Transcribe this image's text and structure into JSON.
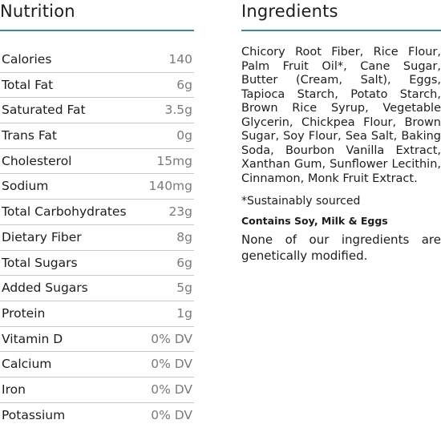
{
  "nutrition": {
    "heading": "Nutrition",
    "rows": [
      {
        "label": "Calories",
        "value": "140"
      },
      {
        "label": "Total Fat",
        "value": "6g"
      },
      {
        "label": "Saturated Fat",
        "value": "3.5g"
      },
      {
        "label": "Trans Fat",
        "value": "0g"
      },
      {
        "label": "Cholesterol",
        "value": "15mg"
      },
      {
        "label": "Sodium",
        "value": "140mg"
      },
      {
        "label": "Total Carbohydrates",
        "value": "23g"
      },
      {
        "label": "Dietary Fiber",
        "value": "8g"
      },
      {
        "label": "Total Sugars",
        "value": "6g"
      },
      {
        "label": "Added Sugars",
        "value": "5g"
      },
      {
        "label": "Protein",
        "value": "1g"
      },
      {
        "label": "Vitamin D",
        "value": "0% DV"
      },
      {
        "label": "Calcium",
        "value": "0% DV"
      },
      {
        "label": "Iron",
        "value": "0% DV"
      },
      {
        "label": "Potassium",
        "value": "0% DV"
      }
    ]
  },
  "ingredients": {
    "heading": "Ingredients",
    "text": "Chicory Root Fiber, Rice Flour, Palm Fruit Oil*, Cane Sugar, Butter (Cream, Salt), Eggs, Tapioca Starch, Potato Starch, Brown Rice Syrup, Vegetable Glycerin, Chickpea Flour, Brown Sugar, Soy Flour, Sea Salt, Baking Soda, Bourbon Vanilla Extract, Xanthan Gum, Sunflower Lecithin, Cinnamon, Monk Fruit Extract.",
    "footnote": "*Sustainably sourced",
    "allergen": "Contains Soy, Milk & Eggs",
    "gmo_note": "None of our ingredients are genetically modified."
  },
  "colors": {
    "accent_rule": "#3f8aa1",
    "row_divider": "#c9c9c9",
    "value_text": "#7a7a7a",
    "body_text": "#1d1d1f"
  }
}
